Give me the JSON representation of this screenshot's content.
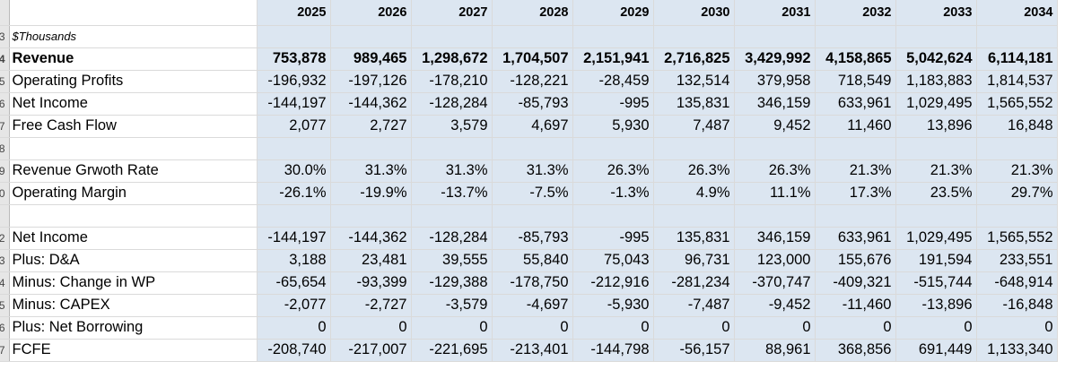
{
  "sheet": {
    "years": [
      "2025",
      "2026",
      "2027",
      "2028",
      "2029",
      "2030",
      "2031",
      "2032",
      "2033",
      "2034"
    ],
    "unit_label": "$Thousands",
    "row_numbers": [
      "",
      "3",
      "4",
      "5",
      "6",
      "7",
      "8",
      "9",
      "0",
      "",
      "2",
      "3",
      "4",
      "5",
      "6",
      "7"
    ],
    "rows": [
      {
        "label": "Revenue",
        "bold": true,
        "values": [
          "753,878",
          "989,465",
          "1,298,672",
          "1,704,507",
          "2,151,941",
          "2,716,825",
          "3,429,992",
          "4,158,865",
          "5,042,624",
          "6,114,181"
        ]
      },
      {
        "label": "Operating Profits",
        "values": [
          "-196,932",
          "-197,126",
          "-178,210",
          "-128,221",
          "-28,459",
          "132,514",
          "379,958",
          "718,549",
          "1,183,883",
          "1,814,537"
        ]
      },
      {
        "label": "Net Income",
        "values": [
          "-144,197",
          "-144,362",
          "-128,284",
          "-85,793",
          "-995",
          "135,831",
          "346,159",
          "633,961",
          "1,029,495",
          "1,565,552"
        ]
      },
      {
        "label": "Free Cash Flow",
        "values": [
          "2,077",
          "2,727",
          "3,579",
          "4,697",
          "5,930",
          "7,487",
          "9,452",
          "11,460",
          "13,896",
          "16,848"
        ]
      },
      {
        "label": "",
        "values": [
          "",
          "",
          "",
          "",
          "",
          "",
          "",
          "",
          "",
          ""
        ]
      },
      {
        "label": "Revenue Grwoth Rate",
        "values": [
          "30.0%",
          "31.3%",
          "31.3%",
          "31.3%",
          "26.3%",
          "26.3%",
          "26.3%",
          "21.3%",
          "21.3%",
          "21.3%"
        ]
      },
      {
        "label": "Operating Margin",
        "values": [
          "-26.1%",
          "-19.9%",
          "-13.7%",
          "-7.5%",
          "-1.3%",
          "4.9%",
          "11.1%",
          "17.3%",
          "23.5%",
          "29.7%"
        ]
      },
      {
        "label": "",
        "values": [
          "",
          "",
          "",
          "",
          "",
          "",
          "",
          "",
          "",
          ""
        ]
      },
      {
        "label": "Net Income",
        "values": [
          "-144,197",
          "-144,362",
          "-128,284",
          "-85,793",
          "-995",
          "135,831",
          "346,159",
          "633,961",
          "1,029,495",
          "1,565,552"
        ]
      },
      {
        "label": "Plus: D&A",
        "values": [
          "3,188",
          "23,481",
          "39,555",
          "55,840",
          "75,043",
          "96,731",
          "123,000",
          "155,676",
          "191,594",
          "233,551"
        ]
      },
      {
        "label": "Minus: Change in WP",
        "values": [
          "-65,654",
          "-93,399",
          "-129,388",
          "-178,750",
          "-212,916",
          "-281,234",
          "-370,747",
          "-409,321",
          "-515,744",
          "-648,914"
        ]
      },
      {
        "label": "Minus: CAPEX",
        "values": [
          "-2,077",
          "-2,727",
          "-3,579",
          "-4,697",
          "-5,930",
          "-7,487",
          "-9,452",
          "-11,460",
          "-13,896",
          "-16,848"
        ]
      },
      {
        "label": "Plus: Net Borrowing",
        "values": [
          "0",
          "0",
          "0",
          "0",
          "0",
          "0",
          "0",
          "0",
          "0",
          "0"
        ]
      },
      {
        "label": "FCFE",
        "values": [
          "-208,740",
          "-217,007",
          "-221,695",
          "-213,401",
          "-144,798",
          "-56,157",
          "88,961",
          "368,856",
          "691,449",
          "1,133,340"
        ]
      }
    ]
  }
}
